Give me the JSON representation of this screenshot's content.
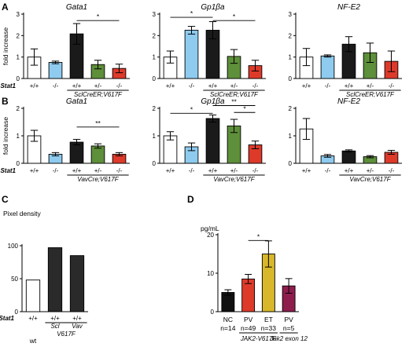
{
  "panels": {
    "A": {
      "letter": "A"
    },
    "B": {
      "letter": "B"
    },
    "C": {
      "letter": "C"
    },
    "D": {
      "letter": "D"
    }
  },
  "colors": {
    "white": "#ffffff",
    "ko": "#8ecbef",
    "black": "#1a1a1a",
    "het": "#5e8f3a",
    "red": "#dd3a2a",
    "dark": "#2a2a2a",
    "nc": "#111111",
    "pv": "#dd3a2a",
    "et": "#d8b72a",
    "jak": "#8e1d4d"
  },
  "chart_data": [
    {
      "id": "A-gata1",
      "type": "bar",
      "title": "Gata1",
      "ylabel": "fold increase",
      "ylim": [
        0,
        3
      ],
      "yticks": [
        0,
        1,
        2,
        3
      ],
      "categories": [
        "+/+",
        "-/-",
        "+/+",
        "+/-",
        "-/-"
      ],
      "values": [
        1.0,
        0.75,
        2.08,
        0.65,
        0.47
      ],
      "errors": [
        0.38,
        0.06,
        0.48,
        0.2,
        0.2
      ],
      "row_label": "Stat1",
      "under_label": "SclCreER;V617F",
      "under_from": 2,
      "under_to": 4,
      "sig": [
        {
          "from": 2,
          "to": 4,
          "y": 2.7,
          "label": "*"
        }
      ]
    },
    {
      "id": "A-gp1b",
      "type": "bar",
      "title": "Gp1βa",
      "ylim": [
        0,
        3
      ],
      "yticks": [
        0,
        1,
        2,
        3
      ],
      "categories": [
        "+/+",
        "-/-",
        "+/+",
        "+/-",
        "-/-"
      ],
      "values": [
        1.0,
        2.25,
        2.25,
        1.03,
        0.6
      ],
      "errors": [
        0.28,
        0.18,
        0.4,
        0.32,
        0.25
      ],
      "under_label": "SclCreER;V617F",
      "under_from": 2,
      "under_to": 4,
      "sig": [
        {
          "from": 0,
          "to": 2,
          "y": 2.85,
          "label": "*"
        },
        {
          "from": 2,
          "to": 4,
          "y": 2.7,
          "label": "*"
        }
      ]
    },
    {
      "id": "A-nfe2",
      "type": "bar",
      "title": "NF-E2",
      "ylim": [
        0,
        3
      ],
      "yticks": [
        0,
        1,
        2,
        3
      ],
      "categories": [
        "+/+",
        "-/-",
        "+/+",
        "+/-",
        "-/-"
      ],
      "values": [
        1.0,
        1.05,
        1.6,
        1.2,
        0.8
      ],
      "errors": [
        0.4,
        0.05,
        0.35,
        0.45,
        0.48
      ],
      "under_label": "SclCreER;V617F",
      "under_from": 2,
      "under_to": 4,
      "sig": []
    },
    {
      "id": "B-gata1",
      "type": "bar",
      "title": "Gata1",
      "ylabel": "fold increase",
      "ylim": [
        0,
        2
      ],
      "yticks": [
        0,
        1,
        2
      ],
      "categories": [
        "+/+",
        "-/-",
        "+/+",
        "+/-",
        "-/-"
      ],
      "values": [
        1.0,
        0.33,
        0.77,
        0.63,
        0.33
      ],
      "errors": [
        0.2,
        0.06,
        0.1,
        0.08,
        0.06
      ],
      "row_label": "Stat1",
      "under_label": "VavCre;V617F",
      "under_from": 2,
      "under_to": 4,
      "sig": [
        {
          "from": 2,
          "to": 4,
          "y": 1.32,
          "label": "**"
        }
      ]
    },
    {
      "id": "B-gp1b",
      "type": "bar",
      "title": "Gp1βa",
      "ylim": [
        0,
        2
      ],
      "yticks": [
        0,
        1,
        2
      ],
      "categories": [
        "+/+",
        "-/-",
        "+/+",
        "+/-",
        "-/-"
      ],
      "values": [
        1.0,
        0.6,
        1.63,
        1.36,
        0.67
      ],
      "errors": [
        0.15,
        0.14,
        0.13,
        0.24,
        0.14
      ],
      "under_label": "VavCre;V617F",
      "under_from": 2,
      "under_to": 4,
      "sig": [
        {
          "from": 0,
          "to": 2,
          "y": 1.82,
          "label": "*"
        },
        {
          "from": 2,
          "to": 4,
          "y": 2.1,
          "label": "**"
        },
        {
          "from": 3,
          "to": 4,
          "y": 1.85,
          "label": "*"
        }
      ]
    },
    {
      "id": "B-nfe2",
      "type": "bar",
      "title": "NF-E2",
      "ylim": [
        0,
        2
      ],
      "yticks": [
        0,
        1,
        2
      ],
      "categories": [
        "+/+",
        "-/-",
        "+/+",
        "+/-",
        "-/-"
      ],
      "values": [
        1.25,
        0.27,
        0.45,
        0.24,
        0.4
      ],
      "errors": [
        0.38,
        0.05,
        0.04,
        0.04,
        0.07
      ],
      "under_label": "VavCre;V617F",
      "under_from": 2,
      "under_to": 4,
      "sig": []
    },
    {
      "id": "C",
      "type": "bar",
      "title": "Pixel density",
      "ylim": [
        0,
        100
      ],
      "yticks": [
        0,
        50,
        100
      ],
      "categories": [
        "+/+",
        "+/+",
        "+/+"
      ],
      "sublabels": [
        "",
        "Scl",
        "Vav"
      ],
      "below": [
        "wt",
        "",
        ""
      ],
      "values": [
        48,
        97,
        85
      ],
      "row_label": "Stat1",
      "under_label": "V617F",
      "under_from": 1,
      "under_to": 2
    },
    {
      "id": "D",
      "type": "bar",
      "ylabel": "pg/mL",
      "ylim": [
        0,
        20
      ],
      "yticks": [
        0,
        10,
        20
      ],
      "categories": [
        "NC",
        "PV",
        "ET",
        "PV"
      ],
      "n_labels": [
        "n=14",
        "n=49",
        "n=33",
        "n=5"
      ],
      "values": [
        5.0,
        8.5,
        15.0,
        6.7
      ],
      "errors": [
        0.7,
        1.2,
        3.4,
        1.9
      ],
      "sig": [
        {
          "from": 1,
          "to": 2,
          "y": 18.5,
          "label": "*"
        }
      ],
      "group_labels": [
        {
          "label": "JAK2-V617F",
          "from": 1,
          "to": 2
        },
        {
          "label": "Jak2 exon 12",
          "from": 3,
          "to": 3
        }
      ]
    }
  ]
}
